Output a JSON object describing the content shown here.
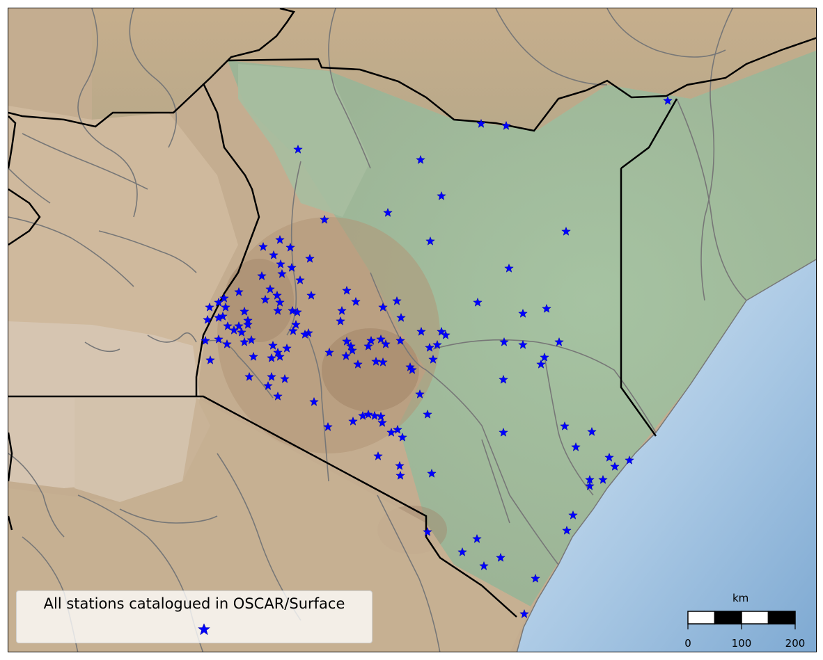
{
  "legend": {
    "label": "All stations catalogued in OSCAR/Surface",
    "marker_icon": "blue-star-icon",
    "marker_color": "#0000ff"
  },
  "scale_bar": {
    "unit": "km",
    "ticks": [
      "0",
      "100",
      "200"
    ]
  },
  "colors": {
    "highland": "#b49a7c",
    "lowland_green": "#9fb89a",
    "ocean": "#8cb4d8",
    "borders": "#000000",
    "rivers": "#777777"
  }
}
